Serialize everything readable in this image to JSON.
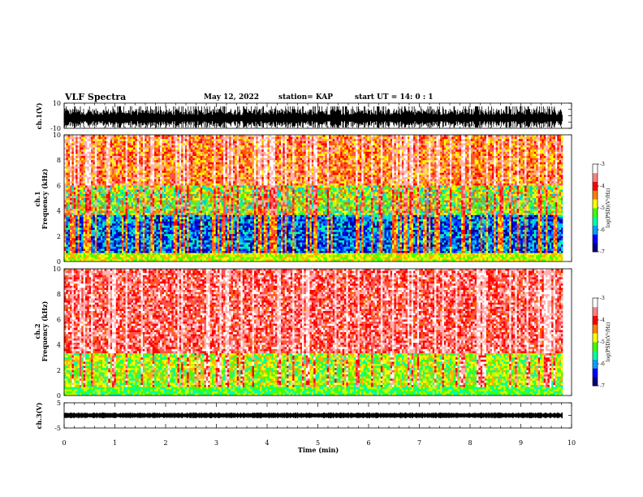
{
  "header": {
    "title": "VLF Spectra",
    "date": "May 12, 2022",
    "station": "station= KAP",
    "start": "start  UT =  14: 0  : 1"
  },
  "colorbar": {
    "label": "log(PSD)(V²/Hz)",
    "ticks": [
      "-3",
      "-4",
      "-5",
      "-6",
      "-7"
    ],
    "colors": [
      "#000080",
      "#0000ff",
      "#00a0ff",
      "#00ffa0",
      "#40ff00",
      "#ffff00",
      "#ff8000",
      "#ff0000",
      "#ff8080",
      "#ffffff"
    ]
  },
  "chart_data": [
    {
      "type": "line",
      "ylabel": "ch.1(V)",
      "xlabel": "",
      "xlim": [
        0,
        10
      ],
      "ylim": [
        -10,
        10
      ],
      "ytick_labels": [
        "10",
        "-10"
      ],
      "description_values": {
        "x_end": 9.83,
        "amplitude_range": [
          -10,
          10
        ]
      }
    },
    {
      "type": "heatmap",
      "ylabel": "ch.1\nFrequency (kHz)",
      "xlim": [
        0,
        10
      ],
      "ylim": [
        0,
        10
      ],
      "x_end": 9.83,
      "ytick_labels": [
        "0",
        "2",
        "4",
        "6",
        "8",
        "10"
      ],
      "zlim": [
        -7,
        -3
      ]
    },
    {
      "type": "heatmap",
      "ylabel": "ch.2\nFrequency (kHz)",
      "xlim": [
        0,
        10
      ],
      "ylim": [
        0,
        10
      ],
      "x_end": 9.83,
      "ytick_labels": [
        "0",
        "2",
        "4",
        "6",
        "8",
        "10"
      ],
      "zlim": [
        -7,
        -3
      ]
    },
    {
      "type": "line",
      "ylabel": "ch.3(V)",
      "xlabel": "Time (min)",
      "xlim": [
        0,
        10
      ],
      "ylim": [
        -5,
        5
      ],
      "ytick_labels": [
        "5",
        "-5"
      ],
      "xtick_labels": [
        "0",
        "1",
        "2",
        "3",
        "4",
        "5",
        "6",
        "7",
        "8",
        "9",
        "10"
      ]
    }
  ],
  "labels": {
    "ch1v": "ch.1(V)",
    "ch1f_a": "ch.1",
    "ch1f_b": "Frequency (kHz)",
    "ch2f_a": "ch.2",
    "ch2f_b": "Frequency (kHz)",
    "ch3v": "ch.3(V)",
    "xlabel": "Time (min)"
  }
}
